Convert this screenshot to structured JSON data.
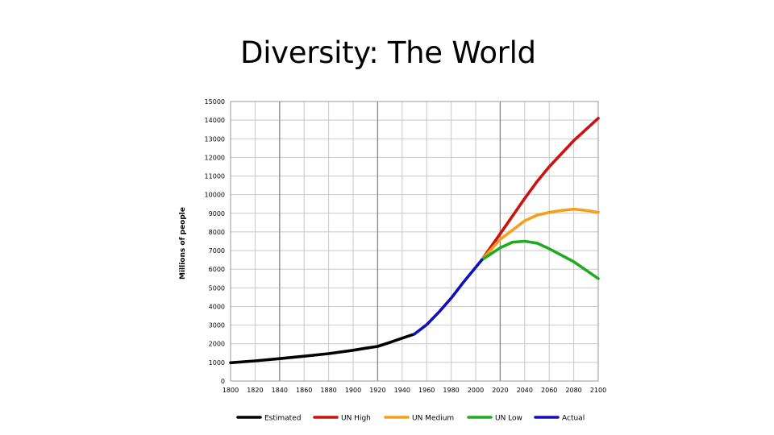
{
  "slide": {
    "title": "Diversity: The World"
  },
  "chart_data": {
    "type": "line",
    "title": "",
    "xlabel": "",
    "ylabel": "Millions of people",
    "xlim": [
      1800,
      2100
    ],
    "ylim": [
      0,
      15000
    ],
    "xticks": [
      1800,
      1820,
      1840,
      1860,
      1880,
      1900,
      1920,
      1940,
      1960,
      1980,
      2000,
      2020,
      2040,
      2060,
      2080,
      2100
    ],
    "yticks": [
      0,
      1000,
      2000,
      3000,
      4000,
      5000,
      6000,
      7000,
      8000,
      9000,
      10000,
      11000,
      12000,
      13000,
      14000,
      15000
    ],
    "grid": true,
    "legend_position": "bottom",
    "series": [
      {
        "name": "Estimated",
        "color": "#000000",
        "x": [
          1800,
          1820,
          1840,
          1860,
          1880,
          1900,
          1910,
          1920,
          1930,
          1940,
          1950
        ],
        "y": [
          980,
          1080,
          1200,
          1330,
          1470,
          1650,
          1760,
          1860,
          2070,
          2300,
          2520
        ]
      },
      {
        "name": "UN High",
        "color": "#cc1111",
        "x": [
          2005,
          2020,
          2040,
          2050,
          2060,
          2080,
          2100
        ],
        "y": [
          6500,
          7900,
          9800,
          10700,
          11500,
          12900,
          14100
        ]
      },
      {
        "name": "UN Medium",
        "color": "#f5a01a",
        "x": [
          2005,
          2020,
          2040,
          2050,
          2060,
          2070,
          2080,
          2090,
          2100
        ],
        "y": [
          6500,
          7600,
          8600,
          8900,
          9050,
          9150,
          9220,
          9150,
          9050
        ]
      },
      {
        "name": "UN Low",
        "color": "#22aa22",
        "x": [
          2005,
          2020,
          2030,
          2040,
          2050,
          2060,
          2080,
          2100
        ],
        "y": [
          6500,
          7150,
          7450,
          7500,
          7400,
          7100,
          6400,
          5500
        ]
      },
      {
        "name": "Actual",
        "color": "#1111bb",
        "x": [
          1950,
          1960,
          1970,
          1980,
          1990,
          2000,
          2005
        ],
        "y": [
          2520,
          3020,
          3700,
          4450,
          5300,
          6100,
          6500
        ]
      }
    ]
  }
}
